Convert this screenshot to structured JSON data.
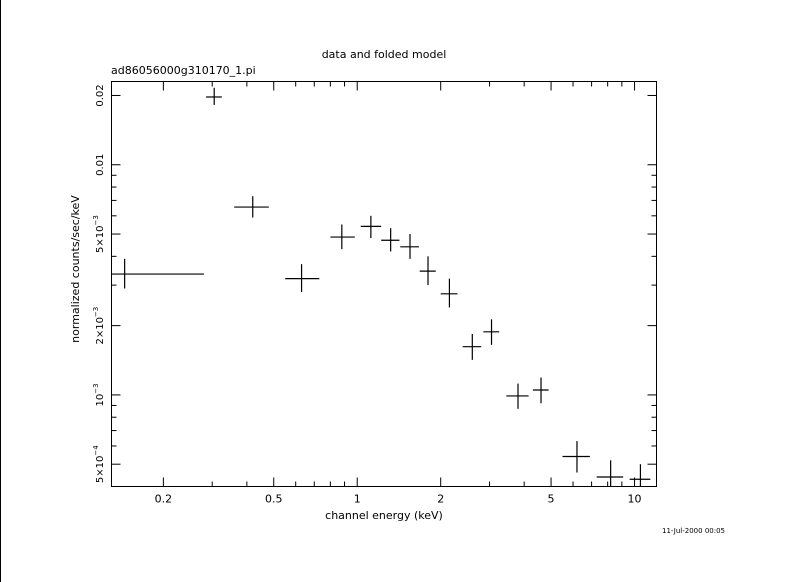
{
  "chart_data": {
    "type": "scatter",
    "title": "data and folded model",
    "subtitle": "ad86056000g310170_1.pi",
    "xlabel": "channel energy (keV)",
    "ylabel": "normalized counts/sec/keV",
    "timestamp": "11-Jul-2000 00:05",
    "xscale": "log",
    "yscale": "log",
    "xlim": [
      0.13,
      12.0
    ],
    "ylim": [
      0.0004,
      0.023
    ],
    "grid": false,
    "xticks": [
      {
        "value": 0.2,
        "label": "0.2"
      },
      {
        "value": 0.5,
        "label": "0.5"
      },
      {
        "value": 1,
        "label": "1"
      },
      {
        "value": 2,
        "label": "2"
      },
      {
        "value": 5,
        "label": "5"
      },
      {
        "value": 10,
        "label": "10"
      }
    ],
    "yticks": [
      {
        "value": 0.0005,
        "mant": "5×10",
        "exp": "−4"
      },
      {
        "value": 0.001,
        "mant": "10",
        "exp": "−3"
      },
      {
        "value": 0.002,
        "mant": "2×10",
        "exp": "−3"
      },
      {
        "value": 0.005,
        "mant": "5×10",
        "exp": "−3"
      },
      {
        "value": 0.01,
        "mant": "0.01",
        "exp": ""
      },
      {
        "value": 0.02,
        "mant": "0.02",
        "exp": ""
      }
    ],
    "points": [
      {
        "x": 0.145,
        "xlo": 0.13,
        "xhi": 0.28,
        "y": 0.00335,
        "ylo": 0.0029,
        "yhi": 0.0039
      },
      {
        "x": 0.305,
        "xlo": 0.285,
        "xhi": 0.325,
        "y": 0.0197,
        "ylo": 0.0182,
        "yhi": 0.0216
      },
      {
        "x": 0.42,
        "xlo": 0.36,
        "xhi": 0.48,
        "y": 0.00655,
        "ylo": 0.0059,
        "yhi": 0.0073
      },
      {
        "x": 0.63,
        "xlo": 0.55,
        "xhi": 0.73,
        "y": 0.0032,
        "ylo": 0.0028,
        "yhi": 0.0037
      },
      {
        "x": 0.88,
        "xlo": 0.8,
        "xhi": 0.98,
        "y": 0.00485,
        "ylo": 0.0043,
        "yhi": 0.0055
      },
      {
        "x": 1.12,
        "xlo": 1.03,
        "xhi": 1.22,
        "y": 0.0054,
        "ylo": 0.0048,
        "yhi": 0.006
      },
      {
        "x": 1.32,
        "xlo": 1.22,
        "xhi": 1.42,
        "y": 0.0047,
        "ylo": 0.0042,
        "yhi": 0.0053
      },
      {
        "x": 1.55,
        "xlo": 1.43,
        "xhi": 1.67,
        "y": 0.0044,
        "ylo": 0.0039,
        "yhi": 0.005
      },
      {
        "x": 1.8,
        "xlo": 1.68,
        "xhi": 1.92,
        "y": 0.00345,
        "ylo": 0.003,
        "yhi": 0.004
      },
      {
        "x": 2.15,
        "xlo": 2.0,
        "xhi": 2.3,
        "y": 0.00275,
        "ylo": 0.0024,
        "yhi": 0.0032
      },
      {
        "x": 2.6,
        "xlo": 2.4,
        "xhi": 2.8,
        "y": 0.00162,
        "ylo": 0.00142,
        "yhi": 0.00184
      },
      {
        "x": 3.05,
        "xlo": 2.85,
        "xhi": 3.25,
        "y": 0.00188,
        "ylo": 0.00165,
        "yhi": 0.00213
      },
      {
        "x": 3.8,
        "xlo": 3.45,
        "xhi": 4.15,
        "y": 0.00099,
        "ylo": 0.00087,
        "yhi": 0.00112
      },
      {
        "x": 4.6,
        "xlo": 4.3,
        "xhi": 4.9,
        "y": 0.00105,
        "ylo": 0.00092,
        "yhi": 0.00119
      },
      {
        "x": 6.2,
        "xlo": 5.5,
        "xhi": 6.9,
        "y": 0.00054,
        "ylo": 0.00046,
        "yhi": 0.00063
      },
      {
        "x": 8.2,
        "xlo": 7.3,
        "xhi": 9.1,
        "y": 0.00044,
        "ylo": 0.00038,
        "yhi": 0.00052
      },
      {
        "x": 10.5,
        "xlo": 9.6,
        "xhi": 11.4,
        "y": 0.00043,
        "ylo": 0.00037,
        "yhi": 0.0005
      }
    ]
  }
}
